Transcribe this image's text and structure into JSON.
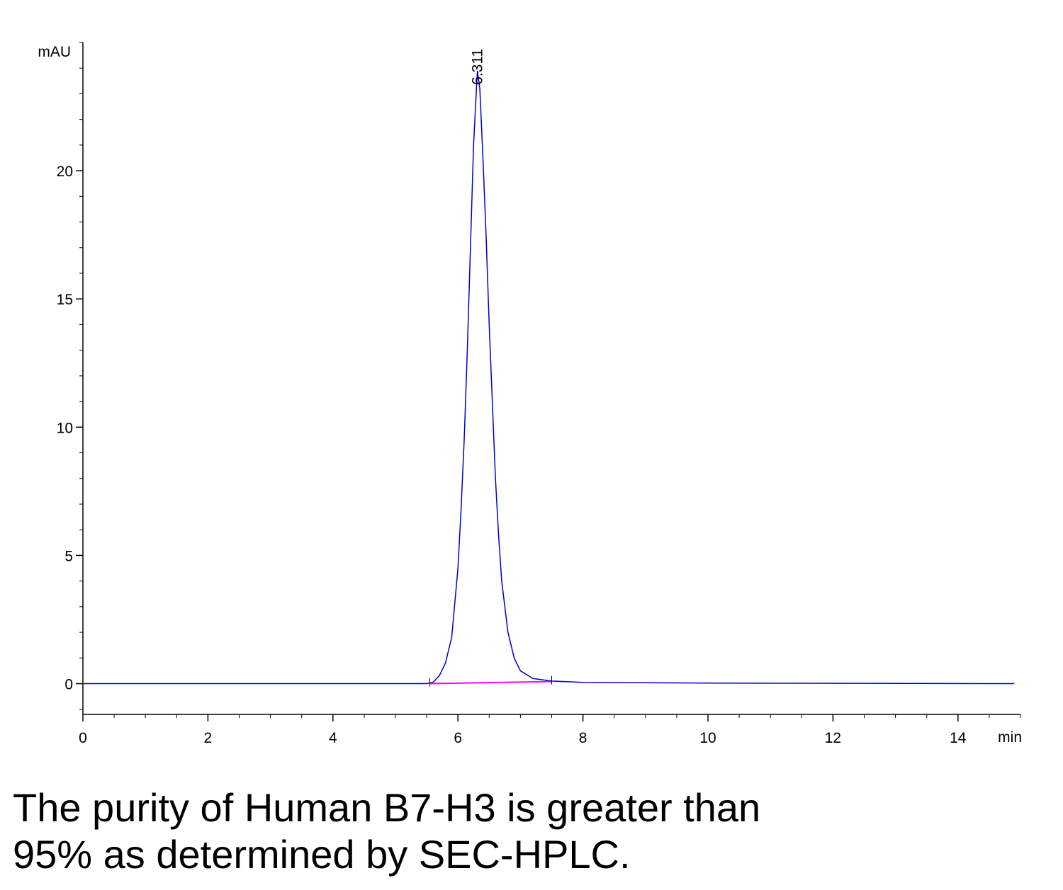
{
  "chart_data": {
    "type": "line",
    "y_label": "mAU",
    "x_label": "min",
    "x": [
      0,
      5.5,
      5.6,
      5.7,
      5.8,
      5.9,
      6.0,
      6.05,
      6.1,
      6.15,
      6.2,
      6.25,
      6.311,
      6.35,
      6.4,
      6.45,
      6.5,
      6.55,
      6.6,
      6.65,
      6.7,
      6.8,
      6.9,
      7.0,
      7.2,
      7.5,
      8.0,
      10.0,
      14.9
    ],
    "values": [
      0,
      0,
      0.05,
      0.3,
      0.8,
      1.8,
      4.5,
      6.8,
      9.5,
      13,
      17,
      21,
      23.9,
      23.2,
      20.5,
      17.5,
      14,
      11,
      8,
      5.8,
      4,
      2,
      1,
      0.5,
      0.2,
      0.1,
      0.05,
      0.02,
      0
    ],
    "color": "#0000cc",
    "baseline": {
      "x": [
        5.55,
        7.5
      ],
      "values": [
        0,
        0.08
      ],
      "color": "#ff00ff"
    },
    "peak_label": {
      "value": 6.311,
      "label": "6.311"
    },
    "xlim": [
      0,
      15
    ],
    "ylim": [
      -1.2,
      25
    ],
    "xticks": [
      0,
      2,
      4,
      6,
      8,
      10,
      12,
      14
    ],
    "yticks": [
      0,
      5,
      10,
      15,
      20
    ],
    "minor_ticks": {
      "x": 0.5,
      "y": 1
    },
    "caption": [
      "The purity of Human B7-H3 is greater than",
      "95% as determined by SEC-HPLC."
    ]
  }
}
